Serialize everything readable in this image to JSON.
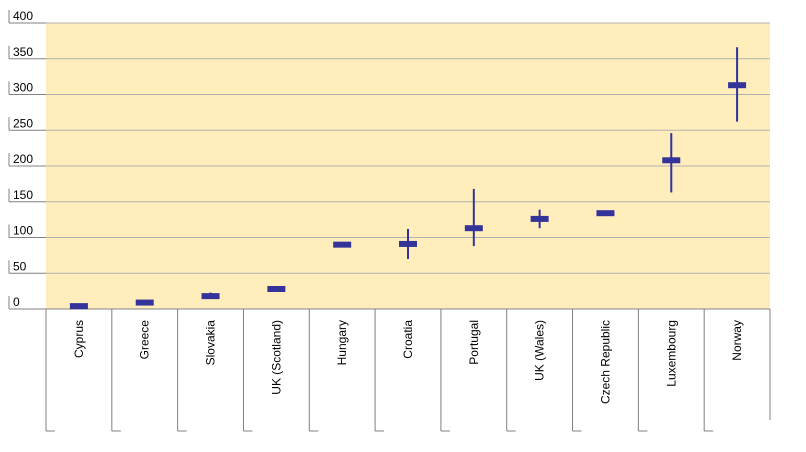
{
  "chart_data": {
    "type": "candlestick",
    "title": "",
    "xlabel": "",
    "ylabel": "",
    "ylim": [
      0,
      400
    ],
    "yticks": [
      0,
      50,
      100,
      150,
      200,
      250,
      300,
      350,
      400
    ],
    "grid": true,
    "categories": [
      "Cyprus",
      "Greece",
      "Slovakia",
      "UK (Scotland)",
      "Hungary",
      "Croatia",
      "Portugal",
      "UK (Wales)",
      "Czech Republic",
      "Luxembourg",
      "Norway"
    ],
    "series": [
      {
        "values": [
          4,
          9,
          18,
          28,
          90,
          91,
          113,
          126,
          134,
          208,
          313
        ],
        "low": [
          4,
          9,
          14,
          28,
          90,
          70,
          88,
          113,
          132,
          163,
          262
        ],
        "high": [
          4,
          9,
          23,
          28,
          90,
          112,
          168,
          139,
          137,
          246,
          366
        ]
      }
    ],
    "colors": {
      "plot_background": "#ffeebb",
      "marker": "#333399",
      "gridline": "#b0b0b0",
      "axis": "#808080"
    }
  }
}
